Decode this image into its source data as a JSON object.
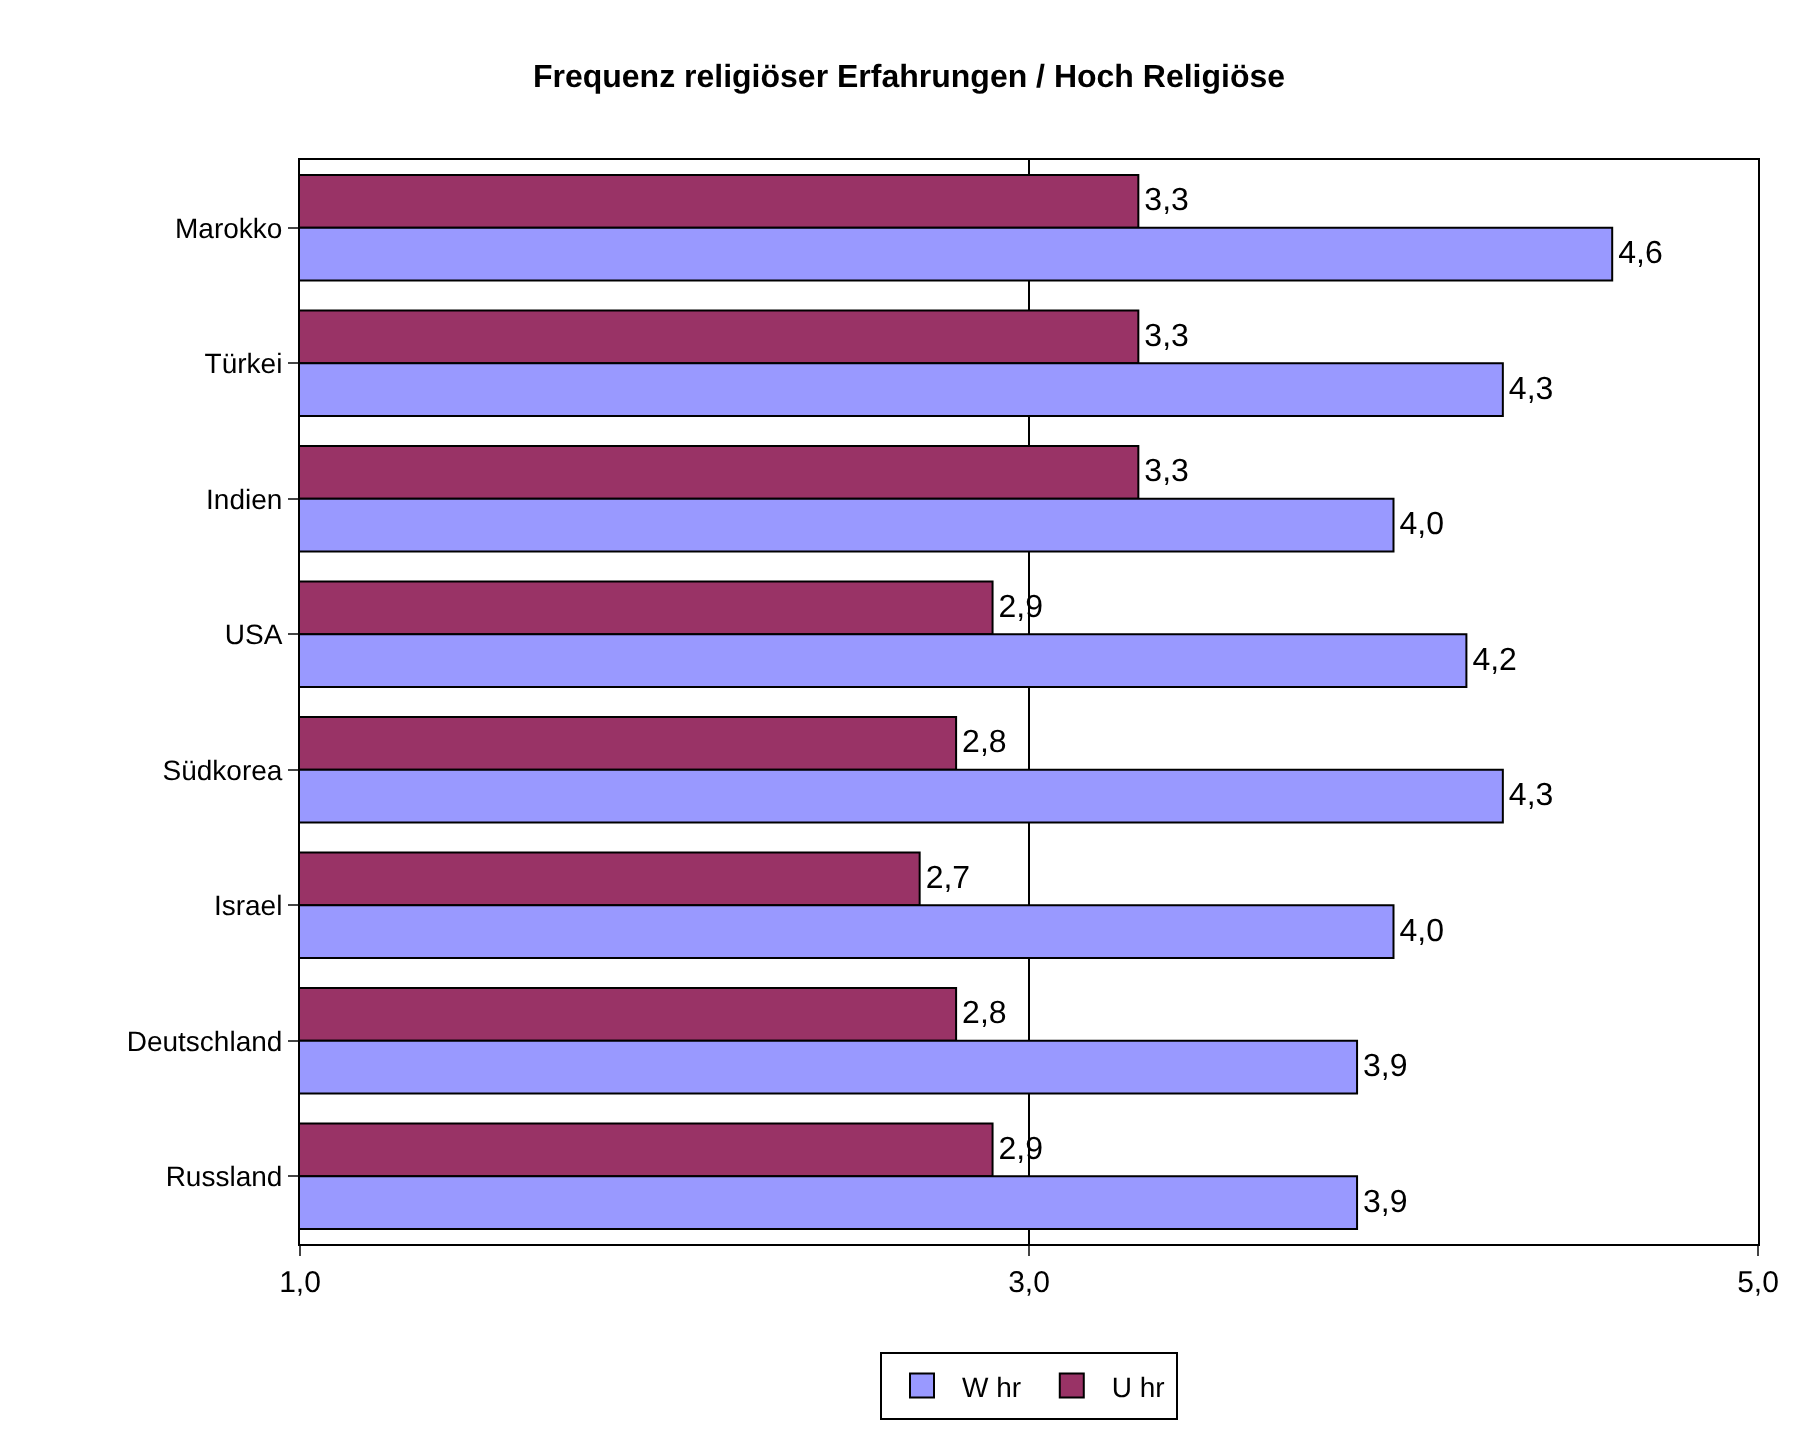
{
  "chart_data": {
    "type": "bar",
    "orientation": "horizontal",
    "title": "Frequenz religiöser Erfahrungen / Hoch Religiöse",
    "categories": [
      "Marokko",
      "Türkei",
      "Indien",
      "USA",
      "Südkorea",
      "Israel",
      "Deutschland",
      "Russland"
    ],
    "series": [
      {
        "name": "U hr",
        "color": "#993366",
        "values": [
          3.3,
          3.3,
          3.3,
          2.9,
          2.8,
          2.7,
          2.8,
          2.9
        ],
        "value_labels": [
          "3,3",
          "3,3",
          "3,3",
          "2,9",
          "2,8",
          "2,7",
          "2,8",
          "2,9"
        ]
      },
      {
        "name": "W hr",
        "color": "#9999ff",
        "values": [
          4.6,
          4.3,
          4.0,
          4.2,
          4.3,
          4.0,
          3.9,
          3.9
        ],
        "value_labels": [
          "4,6",
          "4,3",
          "4,0",
          "4,2",
          "4,3",
          "4,0",
          "3,9",
          "3,9"
        ]
      }
    ],
    "xlim": [
      1,
      5
    ],
    "xticks": [
      {
        "value": 1,
        "label": "1,0"
      },
      {
        "value": 3,
        "label": "3,0"
      },
      {
        "value": 5,
        "label": "5,0"
      }
    ],
    "grid": "x",
    "legend": "bottom"
  }
}
